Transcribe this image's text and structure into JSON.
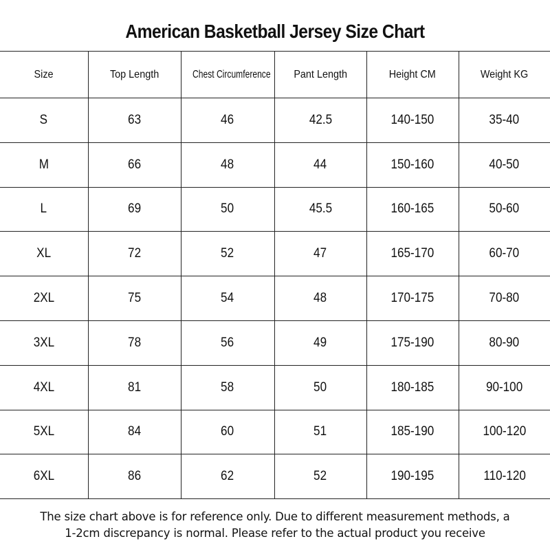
{
  "title": "American Basketball Jersey Size Chart",
  "table": {
    "headers": [
      "Size",
      "Top Length",
      "Chest Circumference",
      "Pant Length",
      "Height CM",
      "Weight KG"
    ],
    "rows": [
      [
        "S",
        "63",
        "46",
        "42.5",
        "140-150",
        "35-40"
      ],
      [
        "M",
        "66",
        "48",
        "44",
        "150-160",
        "40-50"
      ],
      [
        "L",
        "69",
        "50",
        "45.5",
        "160-165",
        "50-60"
      ],
      [
        "XL",
        "72",
        "52",
        "47",
        "165-170",
        "60-70"
      ],
      [
        "2XL",
        "75",
        "54",
        "48",
        "170-175",
        "70-80"
      ],
      [
        "3XL",
        "78",
        "56",
        "49",
        "175-190",
        "80-90"
      ],
      [
        "4XL",
        "81",
        "58",
        "50",
        "180-185",
        "90-100"
      ],
      [
        "5XL",
        "84",
        "60",
        "51",
        "185-190",
        "100-120"
      ],
      [
        "6XL",
        "86",
        "62",
        "52",
        "190-195",
        "110-120"
      ]
    ]
  },
  "note": {
    "line1": "The size chart above is for reference only. Due to different measurement methods, a",
    "line2": "1-2cm discrepancy is normal. Please refer to the actual product you receive"
  }
}
